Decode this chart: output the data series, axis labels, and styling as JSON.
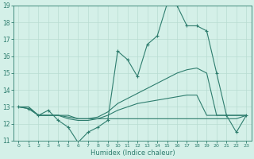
{
  "xlabel": "Humidex (Indice chaleur)",
  "x": [
    0,
    1,
    2,
    3,
    4,
    5,
    6,
    7,
    8,
    9,
    10,
    11,
    12,
    13,
    14,
    15,
    16,
    17,
    18,
    19,
    20,
    21,
    22,
    23
  ],
  "line_main": [
    13.0,
    12.9,
    12.5,
    12.8,
    12.2,
    11.8,
    10.9,
    11.5,
    11.8,
    12.2,
    16.3,
    15.8,
    14.8,
    16.7,
    17.2,
    19.1,
    19.0,
    17.8,
    17.8,
    17.5,
    15.0,
    12.5,
    11.5,
    12.5
  ],
  "line_upper": [
    13.0,
    13.0,
    12.5,
    12.5,
    12.5,
    12.4,
    12.3,
    12.3,
    12.4,
    12.7,
    13.2,
    13.5,
    13.8,
    14.1,
    14.4,
    14.7,
    15.0,
    15.2,
    15.3,
    15.0,
    12.5,
    12.5,
    12.5,
    12.5
  ],
  "line_mid": [
    13.0,
    13.0,
    12.5,
    12.5,
    12.5,
    12.3,
    12.2,
    12.2,
    12.3,
    12.5,
    12.8,
    13.0,
    13.2,
    13.3,
    13.4,
    13.5,
    13.6,
    13.7,
    13.7,
    12.5,
    12.5,
    12.5,
    12.5,
    12.5
  ],
  "line_flat": [
    13.0,
    12.9,
    12.5,
    12.5,
    12.5,
    12.5,
    12.3,
    12.3,
    12.3,
    12.3,
    12.3,
    12.3,
    12.3,
    12.3,
    12.3,
    12.3,
    12.3,
    12.3,
    12.3,
    12.3,
    12.3,
    12.3,
    12.3,
    12.5
  ],
  "line_color": "#2e7d6e",
  "bg_color": "#d4f0e8",
  "grid_color": "#b8dcd2",
  "ylim": [
    11,
    19
  ],
  "xlim": [
    -0.5,
    23.5
  ],
  "yticks": [
    11,
    12,
    13,
    14,
    15,
    16,
    17,
    18,
    19
  ],
  "xticks": [
    0,
    1,
    2,
    3,
    4,
    5,
    6,
    7,
    8,
    9,
    10,
    11,
    12,
    13,
    14,
    15,
    16,
    17,
    18,
    19,
    20,
    21,
    22,
    23
  ]
}
